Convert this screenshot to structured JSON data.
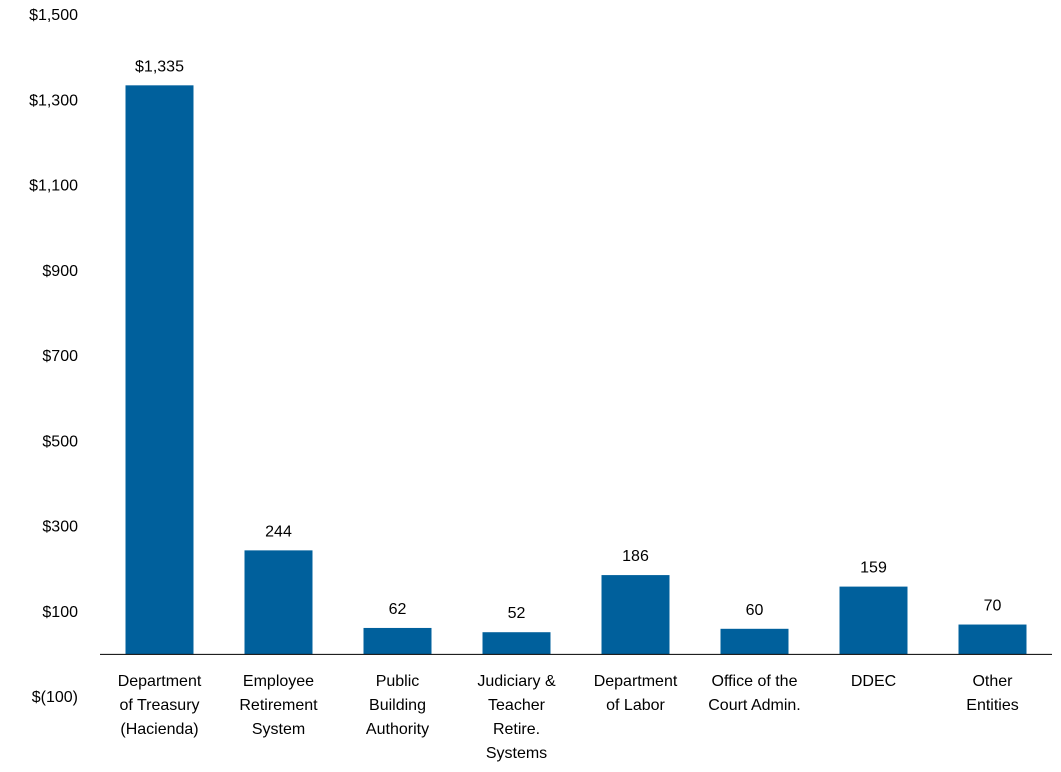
{
  "chart_data": {
    "type": "bar",
    "title": "",
    "xlabel": "",
    "ylabel": "",
    "ylim": [
      -100,
      1500
    ],
    "yticks": [
      -100,
      100,
      300,
      500,
      700,
      900,
      1100,
      1300,
      1500
    ],
    "ytick_labels": [
      "$(100)",
      "$100",
      "$300",
      "$500",
      "$700",
      "$900",
      "$1,100",
      "$1,300",
      "$1,500"
    ],
    "categories": [
      [
        "Department",
        "of Treasury",
        "(Hacienda)"
      ],
      [
        "Employee",
        "Retirement",
        "System"
      ],
      [
        "Public",
        "Building",
        "Authority"
      ],
      [
        "Judiciary &",
        "Teacher",
        "Retire.",
        "Systems"
      ],
      [
        "Department",
        "of Labor"
      ],
      [
        "Office of the",
        "Court Admin."
      ],
      [
        "DDEC"
      ],
      [
        "Other",
        "Entities"
      ]
    ],
    "values": [
      1335,
      244,
      62,
      52,
      186,
      60,
      159,
      70
    ],
    "data_labels": [
      "$1,335",
      "244",
      "62",
      "52",
      "186",
      "60",
      "159",
      "70"
    ],
    "bar_color": "#00609C",
    "axis_color": "#000000",
    "grid": false,
    "legend": "none"
  }
}
